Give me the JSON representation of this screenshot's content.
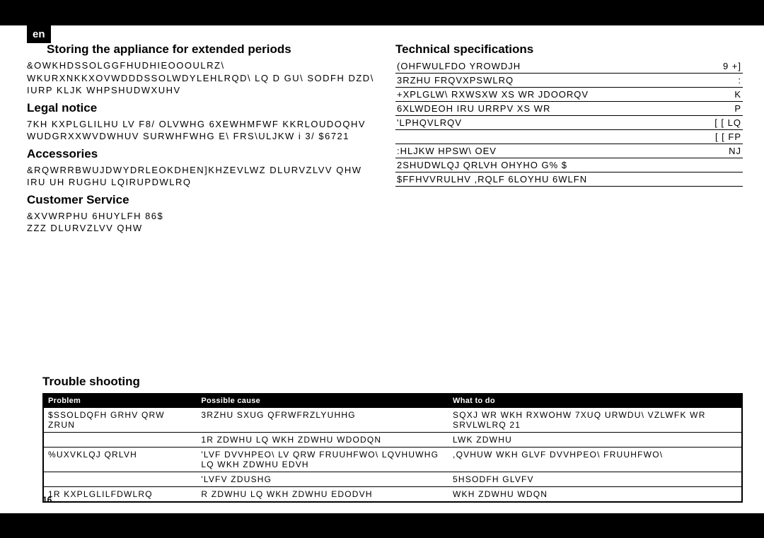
{
  "lang": "en",
  "pageNumber": "16",
  "col1": {
    "h1": "Storing the appliance for extended periods",
    "p1": "&OWKHDSSOLGGFHUDHIEOOOULRZ\\ WKURXNKKXOVWDDDSSOLWDYLEHLRQD\\ LQ D GU\\ SODFH DZD\\ IURP KLJK WHPSHUDWXUHV",
    "h2": "Legal notice",
    "p2": "7KH KXPLGLILHU LV F8/ OLVWHG 6XEWHMFWF KKRLOUDOQHV WUDGRXXWVDWHUV SURWHFWHG E\\ FRS\\ULJKW i 3/ $6721",
    "h3": "Accessories",
    "p3": "&RQWRRBWUJDWYDRLEOKDHEN]KHZEVLWZ DLURVZLVV QHW IRU UH RUGHU LQIRUPDWLRQ",
    "h4": "Customer Service",
    "p4": "&XVWRPHU 6HUYLFH 86$\nZZZ DLURVZLVV QHW"
  },
  "col2": {
    "h1": "Technical specifications",
    "specs": [
      [
        "(OHFWULFDO YROWDJH",
        "9   +]"
      ],
      [
        "3RZHU FRQVXPSWLRQ",
        ":"
      ],
      [
        "+XPLGLW\\ RXWSXW XS WR JDOORQV",
        "K"
      ],
      [
        "6XLWDEOH IRU URRPV XS WR",
        "P"
      ],
      [
        "'LPHQVLRQV",
        "[ [ LQ"
      ],
      [
        "",
        "[ [ FP"
      ],
      [
        ":HLJKW HPSW\\           OEV",
        "NJ"
      ],
      [
        "2SHUDWLQJ QRLVH OHYHO G% $",
        ""
      ],
      [
        "$FFHVVRULHV       ,RQLF 6LOYHU 6WLFN",
        ""
      ]
    ]
  },
  "trouble": {
    "title": "Trouble shooting",
    "headers": [
      "Problem",
      "Possible cause",
      "What to do"
    ],
    "rows": [
      [
        "$SSOLDQFH GRHV QRW ZRUN",
        "3RZHU SXUG QFRWFRZLYUHHG",
        "SQXJ WR WKH RXWOHW 7XUQ URWDU\\ VZLWFK WR SRVLWLRQ 21"
      ],
      [
        "",
        "1R ZDWHU LQ WKH ZDWHU WDODQN",
        "LWK ZDWHU"
      ],
      [
        "%UXVKLQJ QRLVH",
        "'LVF DVVHPEO\\ LV QRW FRUUHFWO\\ LQVHUWHG LQ WKH ZDWHU EDVH",
        ",QVHUW WKH GLVF DVVHPEO\\ FRUUHFWO\\"
      ],
      [
        "",
        "'LVFV ZDUSHG",
        "5HSODFH GLVFV"
      ],
      [
        "1R KXPLGLILFDWLRQ",
        "R ZDWHU LQ WKH ZDWHU EDODVH",
        "WKH ZDWHU WDQN"
      ]
    ]
  }
}
